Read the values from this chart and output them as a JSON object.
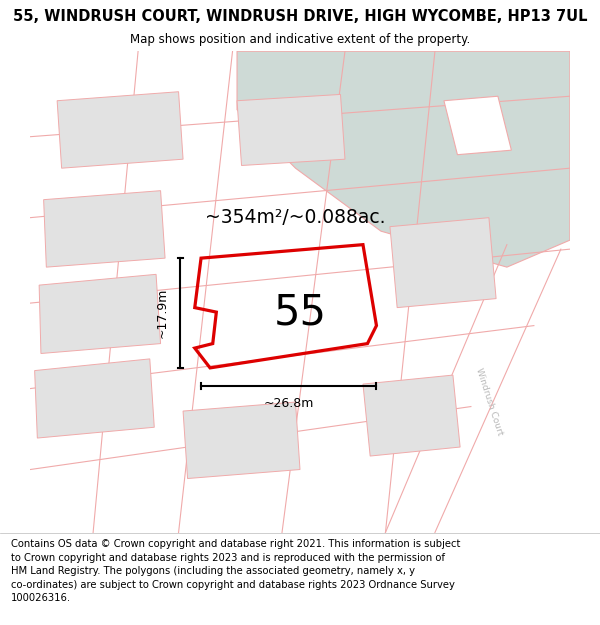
{
  "title": "55, WINDRUSH COURT, WINDRUSH DRIVE, HIGH WYCOMBE, HP13 7UL",
  "subtitle": "Map shows position and indicative extent of the property.",
  "footer": "Contains OS data © Crown copyright and database right 2021. This information is subject to Crown copyright and database rights 2023 and is reproduced with the permission of HM Land Registry. The polygons (including the associated geometry, namely x, y co-ordinates) are subject to Crown copyright and database rights 2023 Ordnance Survey 100026316.",
  "green_color": "#cedad6",
  "building_fill": "#e2e2e2",
  "plot_stroke": "#f0aaaa",
  "main_poly_stroke": "#dd0000",
  "main_poly_lw": 2.3,
  "label_55": "55",
  "area_label": "~354m²/~0.088ac.",
  "dim_width": "~26.8m",
  "dim_height": "~17.9m",
  "road_label": "Windrush Court",
  "title_fontsize": 10.5,
  "subtitle_fontsize": 8.5,
  "footer_fontsize": 7.2
}
